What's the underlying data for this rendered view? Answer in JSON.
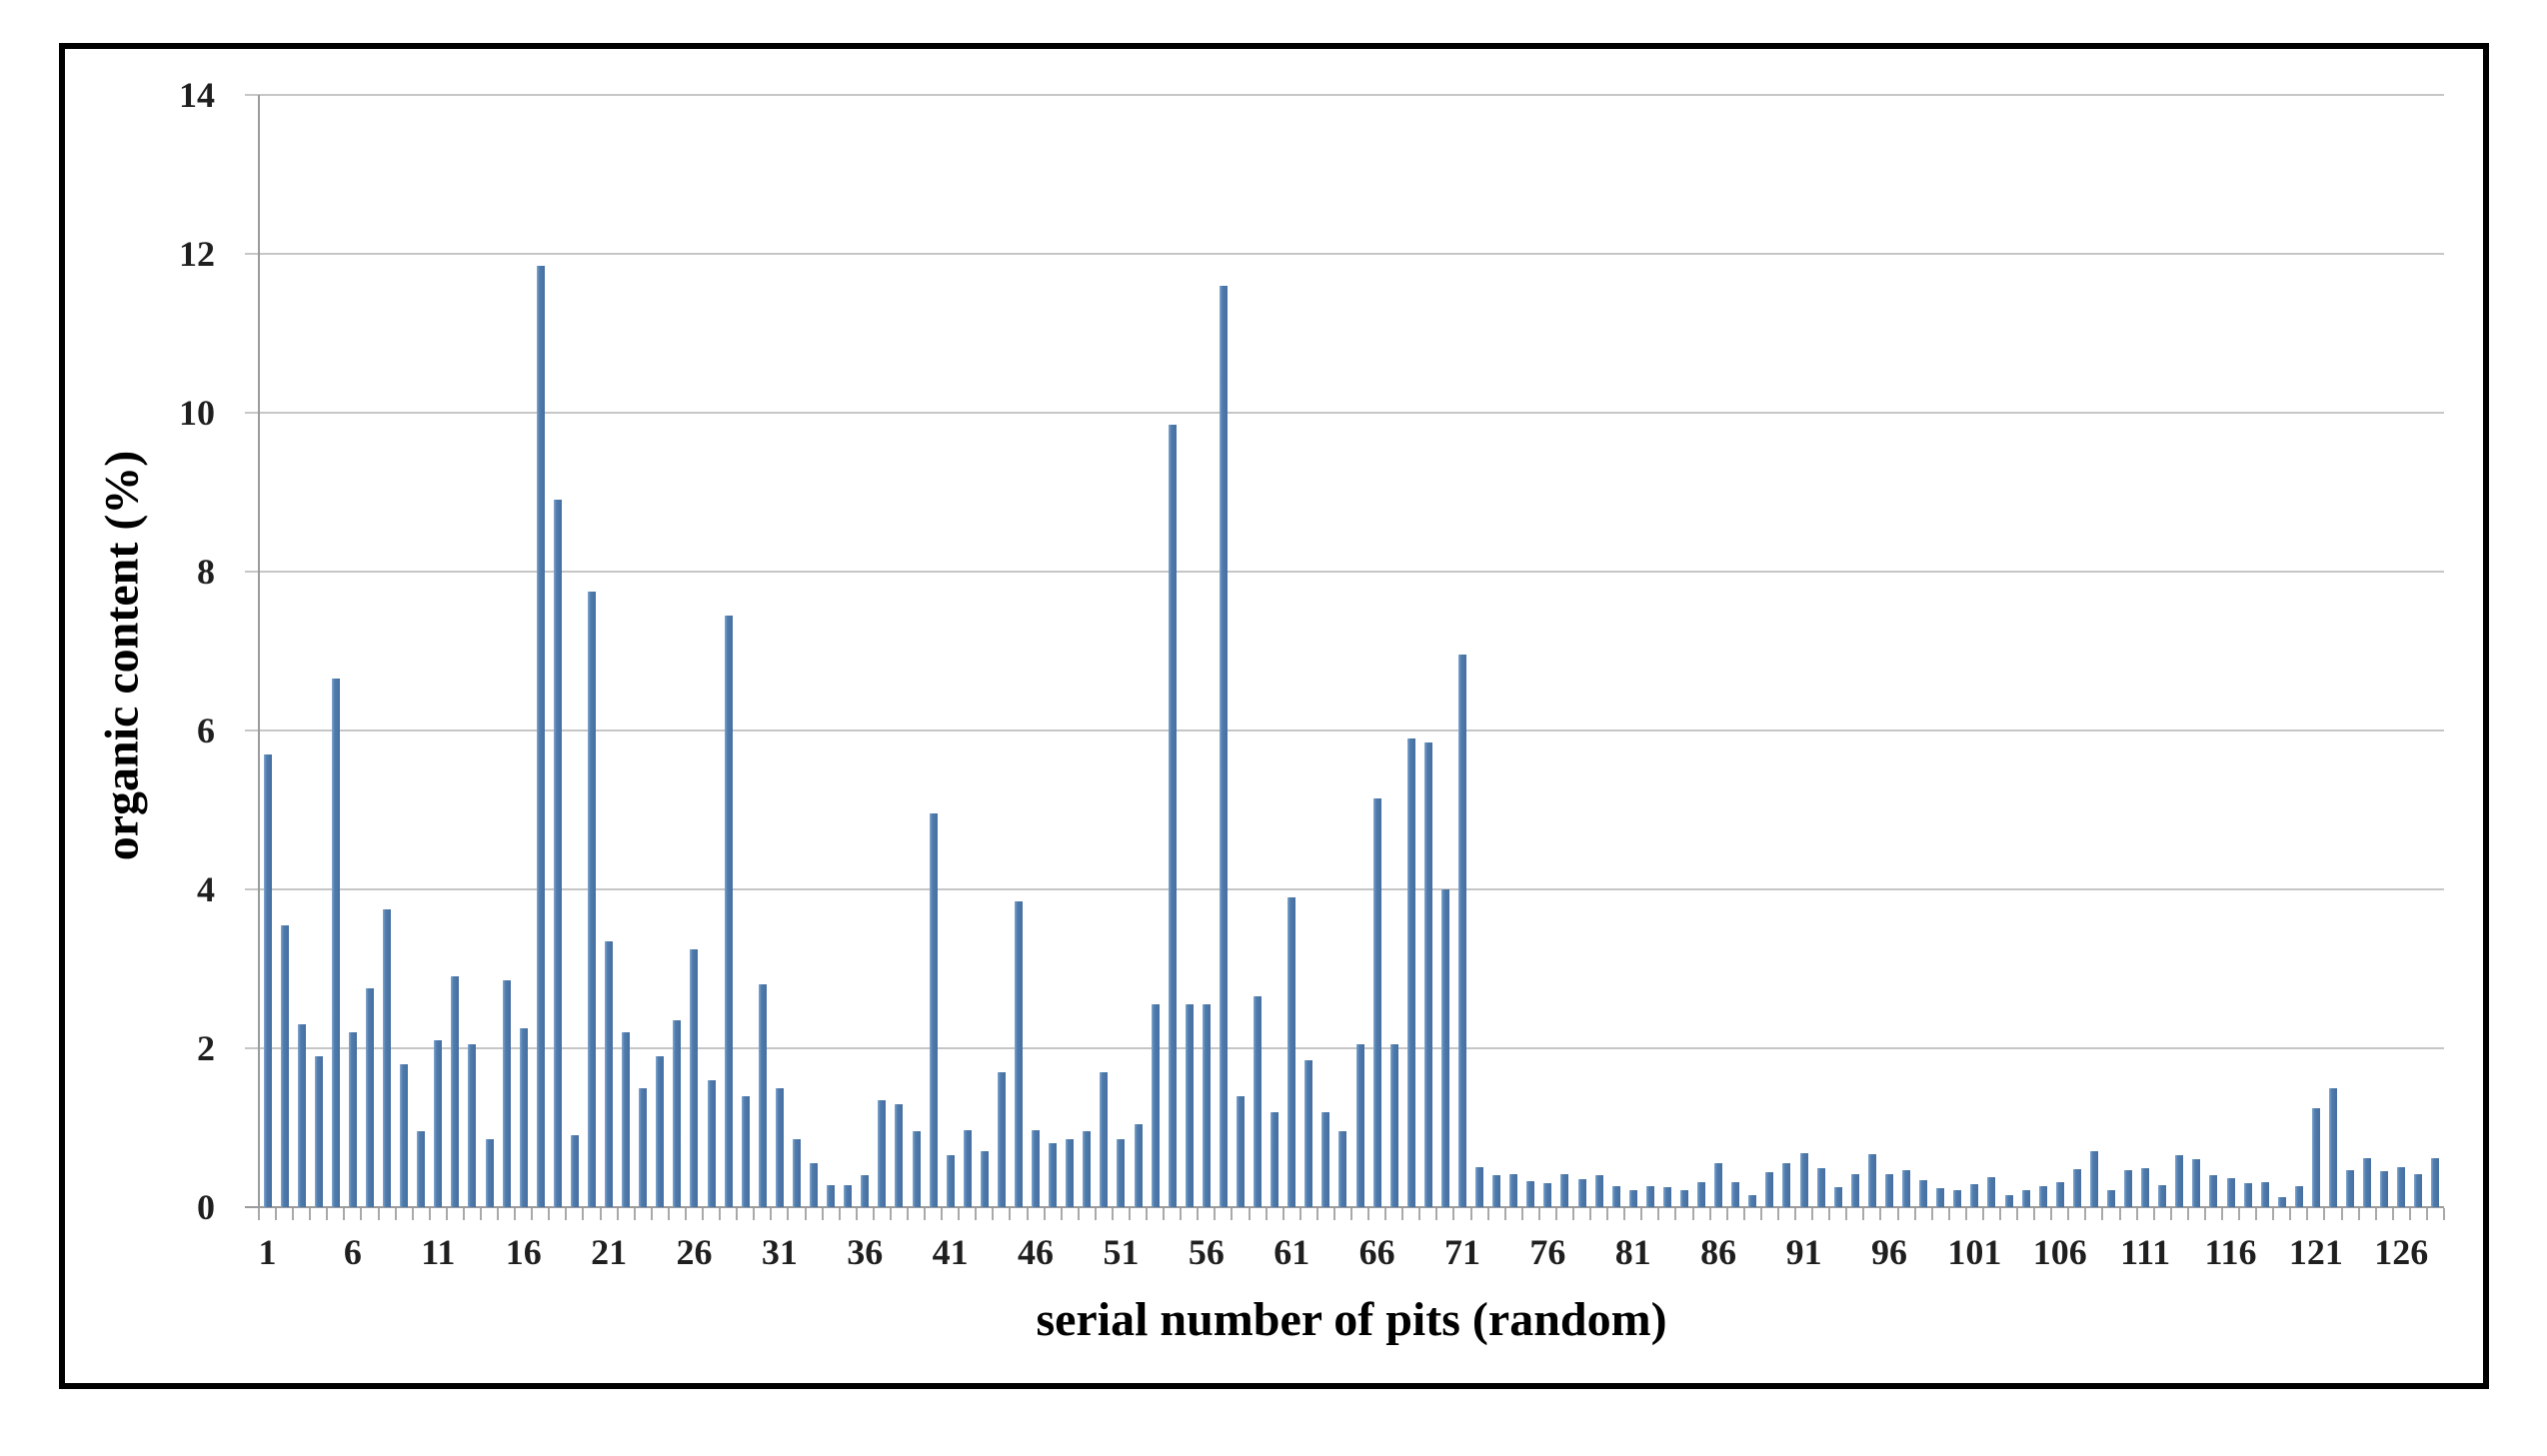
{
  "figure": {
    "background": "#ffffff",
    "frame_border_color": "#000000",
    "gridline_color": "#c6c6c6",
    "axis_color": "#9b9b9b",
    "tick_color": "#a9a9a9",
    "bar_color": "#4e7bad",
    "text_color": "#1f1f1f"
  },
  "chart_data": {
    "type": "bar",
    "title": "",
    "xlabel": "serial number of pits (random)",
    "ylabel": "organic content (%)",
    "ylim": [
      0,
      14
    ],
    "yticks": [
      0,
      2,
      4,
      6,
      8,
      10,
      12,
      14
    ],
    "ytick_labels": [
      "0",
      "2",
      "4",
      "6",
      "8",
      "10",
      "12",
      "14"
    ],
    "x_tick_labels": [
      "1",
      "6",
      "11",
      "16",
      "21",
      "26",
      "31",
      "36",
      "41",
      "46",
      "51",
      "56",
      "61",
      "66",
      "71",
      "76",
      "81",
      "86",
      "91",
      "96",
      "101",
      "106",
      "111",
      "116",
      "121",
      "126"
    ],
    "grid": true,
    "legend": false,
    "categories": [
      1,
      2,
      3,
      4,
      5,
      6,
      7,
      8,
      9,
      10,
      11,
      12,
      13,
      14,
      15,
      16,
      17,
      18,
      19,
      20,
      21,
      22,
      23,
      24,
      25,
      26,
      27,
      28,
      29,
      30,
      31,
      32,
      33,
      34,
      35,
      36,
      37,
      38,
      39,
      40,
      41,
      42,
      43,
      44,
      45,
      46,
      47,
      48,
      49,
      50,
      51,
      52,
      53,
      54,
      55,
      56,
      57,
      58,
      59,
      60,
      61,
      62,
      63,
      64,
      65,
      66,
      67,
      68,
      69,
      70,
      71,
      72,
      73,
      74,
      75,
      76,
      77,
      78,
      79,
      80,
      81,
      82,
      83,
      84,
      85,
      86,
      87,
      88,
      89,
      90,
      91,
      92,
      93,
      94,
      95,
      96,
      97,
      98,
      99,
      100,
      101,
      102,
      103,
      104,
      105,
      106,
      107,
      108,
      109,
      110,
      111,
      112,
      113,
      114,
      115,
      116,
      117,
      118,
      119,
      120,
      121,
      122,
      123,
      124,
      125,
      126,
      127,
      128
    ],
    "values": [
      5.7,
      3.55,
      2.3,
      1.9,
      6.65,
      2.2,
      2.75,
      3.75,
      1.8,
      0.95,
      2.1,
      2.9,
      2.05,
      0.85,
      2.85,
      2.25,
      11.85,
      8.9,
      0.9,
      7.75,
      3.35,
      2.2,
      1.5,
      1.9,
      2.35,
      3.25,
      1.6,
      7.45,
      1.4,
      2.8,
      1.5,
      0.85,
      0.55,
      0.28,
      0.28,
      0.4,
      1.35,
      1.3,
      0.95,
      4.95,
      0.65,
      0.97,
      0.7,
      1.7,
      3.85,
      0.97,
      0.8,
      0.85,
      0.95,
      1.7,
      0.85,
      1.05,
      2.55,
      9.85,
      2.55,
      2.55,
      11.6,
      1.4,
      2.65,
      1.2,
      3.9,
      1.85,
      1.2,
      0.95,
      2.05,
      5.15,
      2.05,
      5.9,
      5.85,
      4.0,
      6.95,
      0.5,
      0.4,
      0.41,
      0.33,
      0.3,
      0.41,
      0.35,
      0.4,
      0.26,
      0.22,
      0.26,
      0.25,
      0.22,
      0.31,
      0.55,
      0.31,
      0.15,
      0.44,
      0.55,
      0.68,
      0.49,
      0.25,
      0.41,
      0.67,
      0.41,
      0.47,
      0.34,
      0.24,
      0.21,
      0.29,
      0.38,
      0.15,
      0.22,
      0.26,
      0.32,
      0.48,
      0.71,
      0.22,
      0.46,
      0.49,
      0.28,
      0.66,
      0.61,
      0.4,
      0.37,
      0.3,
      0.32,
      0.12,
      0.27,
      1.25,
      1.5,
      0.47,
      0.62,
      0.45,
      0.5,
      0.42,
      0.62
    ]
  }
}
